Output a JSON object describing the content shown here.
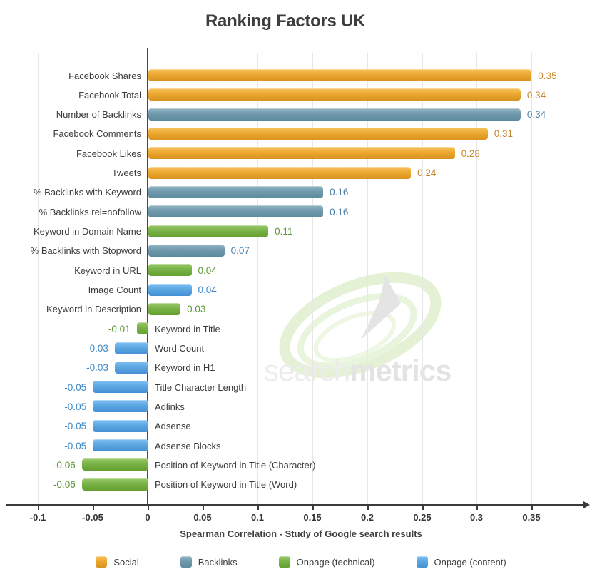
{
  "chart_data": {
    "type": "bar",
    "orientation": "horizontal",
    "title": "Ranking Factors UK",
    "xlabel": "Spearman Correlation - Study of Google search results",
    "xlim": [
      -0.1,
      0.4
    ],
    "grid": true,
    "x_ticks": [
      {
        "value": -0.1,
        "label": "-0.1"
      },
      {
        "value": -0.05,
        "label": "-0.05"
      },
      {
        "value": 0,
        "label": "0"
      },
      {
        "value": 0.05,
        "label": "0.05"
      },
      {
        "value": 0.1,
        "label": "0.1"
      },
      {
        "value": 0.15,
        "label": "0.15"
      },
      {
        "value": 0.2,
        "label": "0.2"
      },
      {
        "value": 0.25,
        "label": "0.25"
      },
      {
        "value": 0.3,
        "label": "0.3"
      },
      {
        "value": 0.35,
        "label": "0.35"
      }
    ],
    "rows": [
      {
        "label": "Facebook Shares",
        "value": 0.35,
        "value_label": "0.35",
        "category": "social"
      },
      {
        "label": "Facebook Total",
        "value": 0.34,
        "value_label": "0.34",
        "category": "social"
      },
      {
        "label": "Number of Backlinks",
        "value": 0.34,
        "value_label": "0.34",
        "category": "backlinks"
      },
      {
        "label": "Facebook Comments",
        "value": 0.31,
        "value_label": "0.31",
        "category": "social"
      },
      {
        "label": "Facebook Likes",
        "value": 0.28,
        "value_label": "0.28",
        "category": "social"
      },
      {
        "label": "Tweets",
        "value": 0.24,
        "value_label": "0.24",
        "category": "social"
      },
      {
        "label": "% Backlinks with Keyword",
        "value": 0.16,
        "value_label": "0.16",
        "category": "backlinks"
      },
      {
        "label": "% Backlinks rel=nofollow",
        "value": 0.16,
        "value_label": "0.16",
        "category": "backlinks"
      },
      {
        "label": "Keyword in Domain Name",
        "value": 0.11,
        "value_label": "0.11",
        "category": "onpage_technical"
      },
      {
        "label": "% Backlinks with Stopword",
        "value": 0.07,
        "value_label": "0.07",
        "category": "backlinks"
      },
      {
        "label": "Keyword in URL",
        "value": 0.04,
        "value_label": "0.04",
        "category": "onpage_technical"
      },
      {
        "label": "Image Count",
        "value": 0.04,
        "value_label": "0.04",
        "category": "onpage_content"
      },
      {
        "label": "Keyword in Description",
        "value": 0.03,
        "value_label": "0.03",
        "category": "onpage_technical"
      },
      {
        "label": "Keyword in Title",
        "value": -0.01,
        "value_label": "-0.01",
        "category": "onpage_technical"
      },
      {
        "label": "Word Count",
        "value": -0.03,
        "value_label": "-0.03",
        "category": "onpage_content"
      },
      {
        "label": "Keyword in H1",
        "value": -0.03,
        "value_label": "-0.03",
        "category": "onpage_content"
      },
      {
        "label": "Title Character Length",
        "value": -0.05,
        "value_label": "-0.05",
        "category": "onpage_content"
      },
      {
        "label": "Adlinks",
        "value": -0.05,
        "value_label": "-0.05",
        "category": "onpage_content"
      },
      {
        "label": "Adsense",
        "value": -0.05,
        "value_label": "-0.05",
        "category": "onpage_content"
      },
      {
        "label": "Adsense Blocks",
        "value": -0.05,
        "value_label": "-0.05",
        "category": "onpage_content"
      },
      {
        "label": "Position of Keyword in Title (Character)",
        "value": -0.06,
        "value_label": "-0.06",
        "category": "onpage_technical"
      },
      {
        "label": "Position of Keyword in Title (Word)",
        "value": -0.06,
        "value_label": "-0.06",
        "category": "onpage_technical"
      }
    ]
  },
  "categories": {
    "social": {
      "label": "Social",
      "bar": "#eda832",
      "bar_light": "#f7c35e",
      "bar_dark": "#d8921f",
      "text": "#c4862a"
    },
    "backlinks": {
      "label": "Backlinks",
      "bar": "#7099ab",
      "bar_light": "#93b6c4",
      "bar_dark": "#5d8b9e",
      "text": "#4a7ea6"
    },
    "onpage_technical": {
      "label": "Onpage (technical)",
      "bar": "#79b246",
      "bar_light": "#9aca6b",
      "bar_dark": "#649f31",
      "text": "#5b9733"
    },
    "onpage_content": {
      "label": "Onpage (content)",
      "bar": "#5ba7e3",
      "bar_light": "#82c0f2",
      "bar_dark": "#4590d4",
      "text": "#3c87c6"
    }
  },
  "legend": {
    "order": [
      "social",
      "backlinks",
      "onpage_technical",
      "onpage_content"
    ]
  },
  "watermark": {
    "part1": "search",
    "part2": "metrics"
  }
}
